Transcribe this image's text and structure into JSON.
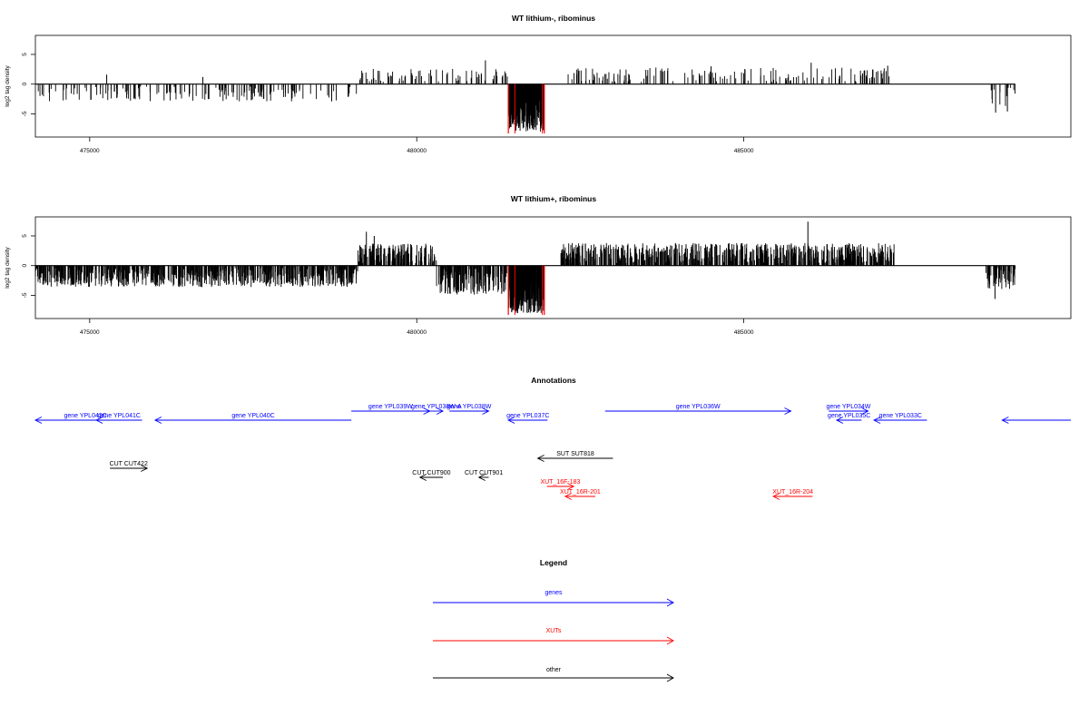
{
  "chart_data": [
    {
      "type": "bar",
      "title": "WT lithium-, ribominus",
      "ylabel": "log2 tag density",
      "xlim": [
        474170,
        490000
      ],
      "ylim": [
        -8.9,
        8.2
      ],
      "x_ticks": [
        475000,
        480000,
        485000
      ],
      "x_tick_labels": [
        "475000",
        "480000",
        "485000"
      ],
      "y_ticks": [
        -5,
        0,
        5
      ],
      "y_tick_labels": [
        "-5",
        "0",
        "5"
      ],
      "segments": [
        {
          "from": 474170,
          "to": 479100,
          "pattern": "neg",
          "amp": 2.5
        },
        {
          "from": 479100,
          "to": 481400,
          "pattern": "pos",
          "amp": 2.2
        },
        {
          "from": 481400,
          "to": 481950,
          "pattern": "deep",
          "amp": 6.5,
          "highlight": true
        },
        {
          "from": 482300,
          "to": 487300,
          "pattern": "pos",
          "amp": 2.4
        },
        {
          "from": 488750,
          "to": 489150,
          "pattern": "neg",
          "amp": 3.4
        }
      ],
      "peaks": [
        {
          "x": 475260,
          "y": 1.6
        },
        {
          "x": 476730,
          "y": 1.2
        },
        {
          "x": 478700,
          "y": -2.9
        },
        {
          "x": 481050,
          "y": 4.0
        },
        {
          "x": 481500,
          "y": -8.3
        },
        {
          "x": 481920,
          "y": -8.3
        },
        {
          "x": 484500,
          "y": 3.0
        },
        {
          "x": 486030,
          "y": 3.6
        },
        {
          "x": 487200,
          "y": 3.1
        },
        {
          "x": 488850,
          "y": -4.8
        },
        {
          "x": 489030,
          "y": -4.6
        }
      ],
      "highlight_color": "#ff0000"
    },
    {
      "type": "bar",
      "title": "WT lithium+, ribominus",
      "ylabel": "log2 tag density",
      "xlim": [
        474170,
        490000
      ],
      "ylim": [
        -8.9,
        8.2
      ],
      "x_ticks": [
        475000,
        480000,
        485000
      ],
      "x_tick_labels": [
        "475000",
        "480000",
        "485000"
      ],
      "y_ticks": [
        -5,
        0,
        5
      ],
      "y_tick_labels": [
        "-5",
        "0",
        "5"
      ],
      "segments": [
        {
          "from": 474170,
          "to": 479100,
          "pattern": "neg",
          "amp": 3.2
        },
        {
          "from": 479100,
          "to": 480300,
          "pattern": "pos",
          "amp": 3.3
        },
        {
          "from": 480300,
          "to": 481400,
          "pattern": "neg",
          "amp": 4.5
        },
        {
          "from": 481400,
          "to": 481950,
          "pattern": "deep",
          "amp": 6.5,
          "highlight": true
        },
        {
          "from": 482200,
          "to": 487300,
          "pattern": "pos",
          "amp": 3.4
        },
        {
          "from": 488700,
          "to": 489150,
          "pattern": "neg",
          "amp": 3.6
        }
      ],
      "peaks": [
        {
          "x": 479230,
          "y": 5.7
        },
        {
          "x": 479350,
          "y": 5.0
        },
        {
          "x": 481500,
          "y": -8.3
        },
        {
          "x": 481920,
          "y": -8.3
        },
        {
          "x": 485980,
          "y": 7.4
        },
        {
          "x": 488840,
          "y": -5.6
        }
      ],
      "highlight_color": "#ff0000"
    }
  ],
  "annotations": {
    "title": "Annotations",
    "items": [
      {
        "label": "gene YPL042C",
        "start": 474170,
        "end": 475700,
        "strand": "-",
        "row": 1,
        "kind": "gene"
      },
      {
        "label": "gene YPL041C",
        "start": 475100,
        "end": 475800,
        "strand": "-",
        "row": 1,
        "kind": "gene"
      },
      {
        "label": "gene YPL040C",
        "start": 476000,
        "end": 479000,
        "strand": "-",
        "row": 1,
        "kind": "gene"
      },
      {
        "label": "gene YPL039W",
        "start": 479000,
        "end": 480200,
        "strand": "+",
        "row": 0,
        "kind": "gene"
      },
      {
        "label": "gene YPL038W-A",
        "start": 480200,
        "end": 480400,
        "strand": "+",
        "row": 0,
        "kind": "gene"
      },
      {
        "label": "gene YPL038W",
        "start": 480500,
        "end": 481100,
        "strand": "+",
        "row": 0,
        "kind": "gene"
      },
      {
        "label": "gene YPL037C",
        "start": 481400,
        "end": 482000,
        "strand": "-",
        "row": 1,
        "kind": "gene"
      },
      {
        "label": "gene YPL036W",
        "start": 482880,
        "end": 485720,
        "strand": "+",
        "row": 0,
        "kind": "gene"
      },
      {
        "label": "gene YPL034W",
        "start": 486300,
        "end": 486900,
        "strand": "+",
        "row": 0,
        "kind": "gene"
      },
      {
        "label": "gene YPL035C",
        "start": 486420,
        "end": 486800,
        "strand": "-",
        "row": 1,
        "kind": "gene"
      },
      {
        "label": "gene YPL033C",
        "start": 486990,
        "end": 487800,
        "strand": "-",
        "row": 1,
        "kind": "gene"
      },
      {
        "label": "",
        "start": 488950,
        "end": 490000,
        "strand": "-",
        "row": 1,
        "kind": "gene"
      },
      {
        "label": "SUT SUT818",
        "start": 481850,
        "end": 483000,
        "strand": "-",
        "row": 2,
        "kind": "other"
      },
      {
        "label": "CUT CUT422",
        "start": 475310,
        "end": 475880,
        "strand": "+",
        "row": 3,
        "kind": "other"
      },
      {
        "label": "CUT CUT900",
        "start": 480050,
        "end": 480400,
        "strand": "-",
        "row": 4,
        "kind": "other"
      },
      {
        "label": "CUT CUT901",
        "start": 480950,
        "end": 481100,
        "strand": "-",
        "row": 4,
        "kind": "other"
      },
      {
        "label": "XUT_16F-183",
        "start": 481990,
        "end": 482400,
        "strand": "+",
        "row": 5,
        "kind": "xut"
      },
      {
        "label": "XUT_16R-201",
        "start": 482270,
        "end": 482730,
        "strand": "-",
        "row": 6,
        "kind": "xut"
      },
      {
        "label": "XUT_16R-204",
        "start": 485450,
        "end": 486050,
        "strand": "-",
        "row": 6,
        "kind": "xut"
      }
    ]
  },
  "legend": {
    "title": "Legend",
    "items": [
      {
        "label": "genes",
        "color": "#0000ff"
      },
      {
        "label": "XUTs",
        "color": "#ff0000"
      },
      {
        "label": "other",
        "color": "#000000"
      }
    ]
  },
  "colors": {
    "gene": "#0000ff",
    "xut": "#ff0000",
    "other": "#000000"
  }
}
